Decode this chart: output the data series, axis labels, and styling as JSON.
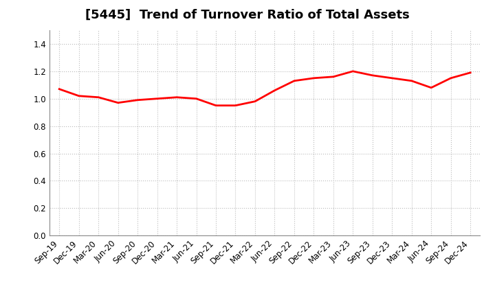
{
  "title": "[5445]  Trend of Turnover Ratio of Total Assets",
  "x_labels": [
    "Sep-19",
    "Dec-19",
    "Mar-20",
    "Jun-20",
    "Sep-20",
    "Dec-20",
    "Mar-21",
    "Jun-21",
    "Sep-21",
    "Dec-21",
    "Mar-22",
    "Jun-22",
    "Sep-22",
    "Dec-22",
    "Mar-23",
    "Jun-23",
    "Sep-23",
    "Dec-23",
    "Mar-24",
    "Jun-24",
    "Sep-24",
    "Dec-24"
  ],
  "y_values": [
    1.07,
    1.02,
    1.01,
    0.97,
    0.99,
    1.0,
    1.01,
    1.0,
    0.95,
    0.95,
    0.98,
    1.06,
    1.13,
    1.15,
    1.16,
    1.2,
    1.17,
    1.15,
    1.13,
    1.08,
    1.15,
    1.19
  ],
  "line_color": "#FF0000",
  "line_width": 2.0,
  "ylim": [
    0.0,
    1.5
  ],
  "yticks": [
    0.0,
    0.2,
    0.4,
    0.6,
    0.8,
    1.0,
    1.2,
    1.4
  ],
  "background_color": "#FFFFFF",
  "plot_bg_color": "#FFFFFF",
  "grid_color": "#BBBBBB",
  "title_fontsize": 13,
  "tick_fontsize": 8.5
}
